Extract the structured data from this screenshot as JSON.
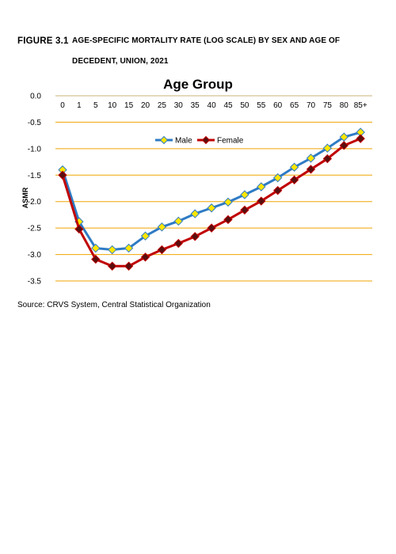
{
  "figure": {
    "number": "FIGURE 3.1",
    "title": "AGE-SPECIFIC MORTALITY RATE (LOG SCALE) BY SEX AND AGE OF DECEDENT, UNION, 2021"
  },
  "source": "Source: CRVS System, Central Statistical Organization",
  "chart_data": {
    "type": "line",
    "title": "Age Group",
    "xlabel": "",
    "ylabel": "ASMR",
    "categories": [
      "0",
      "1",
      "5",
      "10",
      "15",
      "20",
      "25",
      "30",
      "35",
      "40",
      "45",
      "50",
      "55",
      "60",
      "65",
      "70",
      "75",
      "80",
      "85+"
    ],
    "ylim": [
      -3.5,
      0.0
    ],
    "yticks": [
      "0.0",
      "-0.5",
      "-1.0",
      "-1.5",
      "-2.0",
      "-2.5",
      "-3.0",
      "-3.5"
    ],
    "x_axis_position": "top",
    "grid": true,
    "gridline_color": "#f0a500",
    "legend_position": "top-center",
    "series": [
      {
        "name": "Male",
        "color": "#2e7bc4",
        "marker_color": "#ffe600",
        "marker": "diamond",
        "values": [
          -1.4,
          -2.38,
          -2.88,
          -2.91,
          -2.88,
          -2.65,
          -2.48,
          -2.37,
          -2.23,
          -2.12,
          -2.01,
          -1.87,
          -1.72,
          -1.55,
          -1.35,
          -1.18,
          -0.99,
          -0.78,
          -0.69
        ]
      },
      {
        "name": "Female",
        "color": "#c00000",
        "marker_color": "#5a0e0e",
        "marker": "diamond",
        "values": [
          -1.5,
          -2.52,
          -3.09,
          -3.22,
          -3.22,
          -3.05,
          -2.91,
          -2.79,
          -2.66,
          -2.5,
          -2.34,
          -2.16,
          -1.99,
          -1.79,
          -1.59,
          -1.39,
          -1.19,
          -0.94,
          -0.81
        ]
      }
    ]
  }
}
